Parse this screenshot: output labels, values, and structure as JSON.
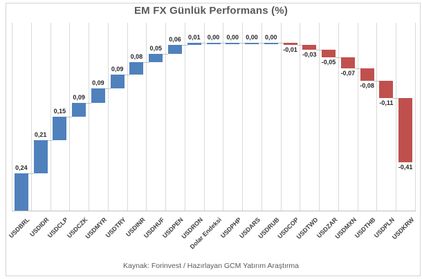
{
  "title": "EM FX Günlük Performans (%)",
  "footer": "Kaynak: Forinvest / Hazırlayan GCM Yatırım Araştırma",
  "colors": {
    "positive": "#4F81BD",
    "negative": "#C0504D",
    "gridline": "#D9D9D9",
    "axis_line": "#BFBFBF",
    "connector": "#BFBFBF",
    "title_text": "#595959",
    "value_label_text": "#262626",
    "category_label_text": "#404040",
    "footer_text": "#595959",
    "border": "#D3D3D3"
  },
  "chart_data": {
    "type": "bar",
    "subtype": "waterfall",
    "title": "EM FX Günlük Performans (%)",
    "categories": [
      "USDBRL",
      "USDIDR",
      "USDCLP",
      "USDCZK",
      "USDMYR",
      "USDTRY",
      "USDINR",
      "USDHUF",
      "USDPEN",
      "USDRON",
      "Dolar Endeksi",
      "USDPHP",
      "USDARS",
      "USDRUB",
      "USDCOP",
      "USDTWD",
      "USDZAR",
      "USDMXN",
      "USDTHB",
      "USDPLN",
      "USDKRW"
    ],
    "values": [
      0.24,
      0.21,
      0.15,
      0.09,
      0.09,
      0.09,
      0.08,
      0.05,
      0.06,
      0.01,
      0.0,
      0.0,
      0.0,
      0.0,
      -0.01,
      -0.03,
      -0.05,
      -0.07,
      -0.08,
      -0.11,
      -0.41
    ],
    "value_labels": [
      "0,24",
      "0,21",
      "0,15",
      "0,09",
      "0,09",
      "0,09",
      "0,08",
      "0,05",
      "0,06",
      "0,01",
      "0,00",
      "0,00",
      "0,00",
      "0,00",
      "-0,01",
      "-0,03",
      "-0,05",
      "-0,07",
      "-0,08",
      "-0,11",
      "-0,41"
    ],
    "cumulative": [
      0.24,
      0.45,
      0.6,
      0.69,
      0.78,
      0.87,
      0.95,
      1.0,
      1.06,
      1.07,
      1.07,
      1.07,
      1.07,
      1.07,
      1.06,
      1.03,
      0.98,
      0.91,
      0.83,
      0.72,
      0.31
    ],
    "xlabel": "",
    "ylabel": "",
    "ylim": [
      0,
      1.2
    ],
    "grid": "vertical-only",
    "legend": "none",
    "source": "Kaynak: Forinvest / Hazırlayan GCM Yatırım Araştırma"
  }
}
